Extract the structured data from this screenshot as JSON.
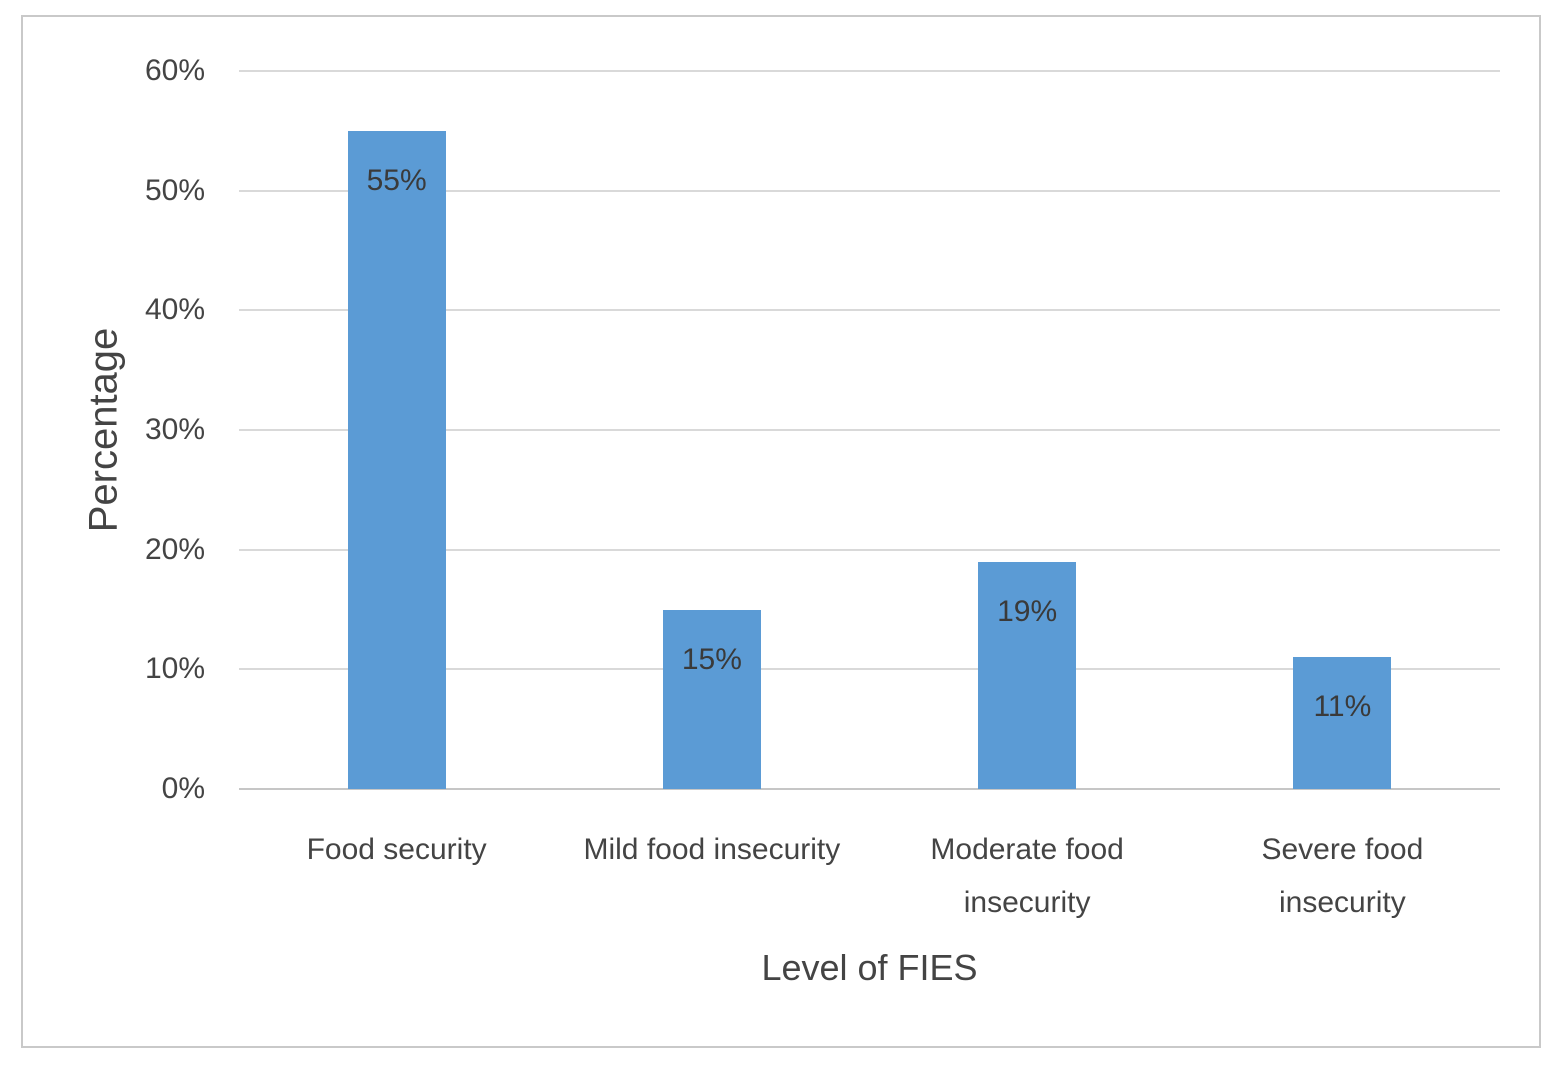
{
  "chart_data": {
    "type": "bar",
    "title": "",
    "categories": [
      "Food security",
      "Mild food insecurity",
      "Moderate food insecurity",
      "Severe food insecurity"
    ],
    "category_lines": [
      [
        "Food security"
      ],
      [
        "Mild food insecurity"
      ],
      [
        "Moderate food",
        "insecurity"
      ],
      [
        "Severe food",
        "insecurity"
      ]
    ],
    "values": [
      55,
      15,
      19,
      11
    ],
    "data_labels": [
      "55%",
      "15%",
      "19%",
      "11%"
    ],
    "xlabel": "Level of FIES",
    "ylabel": "Percentage",
    "ylim": [
      0,
      60
    ],
    "ytick_step": 10,
    "ytick_labels": [
      "0%",
      "10%",
      "20%",
      "30%",
      "40%",
      "50%",
      "60%"
    ],
    "grid": "horizontal-major",
    "legend": "none",
    "data_label_position": "inside-end",
    "colors": {
      "bar": "#5B9BD5",
      "gridline": "#d9d9d9",
      "axis_line": "#c6c6c6",
      "text": "#444444",
      "data_label_text": "#3a3a3a",
      "figure_border": "#c9c9c9",
      "background": "#ffffff"
    }
  }
}
